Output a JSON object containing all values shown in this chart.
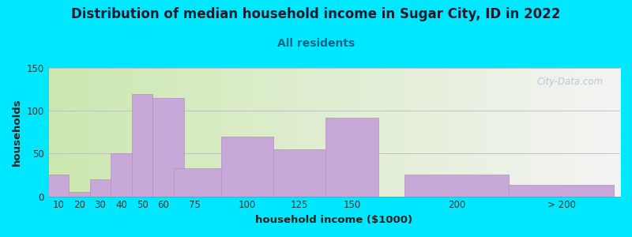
{
  "title": "Distribution of median household income in Sugar City, ID in 2022",
  "subtitle": "All residents",
  "xlabel": "household income ($1000)",
  "ylabel": "households",
  "title_fontsize": 12,
  "subtitle_fontsize": 10,
  "label_fontsize": 9.5,
  "tick_fontsize": 8.5,
  "bar_labels": [
    "10",
    "20",
    "30",
    "40",
    "50",
    "60",
    "75",
    "100",
    "125",
    "150",
    "200",
    "> 200"
  ],
  "bar_values": [
    25,
    5,
    20,
    50,
    120,
    115,
    33,
    70,
    55,
    92,
    25,
    13
  ],
  "bar_color": "#c8a8d8",
  "bar_edge_color": "#b090c0",
  "background_color": "#00e8ff",
  "plot_bg_gradient_left": "#cce8b0",
  "plot_bg_gradient_right": "#f4f4f4",
  "ylim": [
    0,
    150
  ],
  "yticks": [
    0,
    50,
    100,
    150
  ],
  "watermark": "City-Data.com",
  "title_color": "#1a1a2e",
  "subtitle_color": "#006688",
  "axis_label_color": "#222222",
  "tick_color": "#333333",
  "x_ticks_pos": [
    10,
    20,
    30,
    40,
    50,
    60,
    75,
    100,
    125,
    150,
    200,
    250
  ],
  "bar_widths": [
    10,
    10,
    10,
    10,
    10,
    15,
    25,
    25,
    25,
    25,
    50,
    50
  ],
  "bar_lefts": [
    5,
    15,
    25,
    35,
    45,
    55,
    65,
    87.5,
    112.5,
    137.5,
    175,
    225
  ],
  "xlim": [
    5,
    278
  ]
}
